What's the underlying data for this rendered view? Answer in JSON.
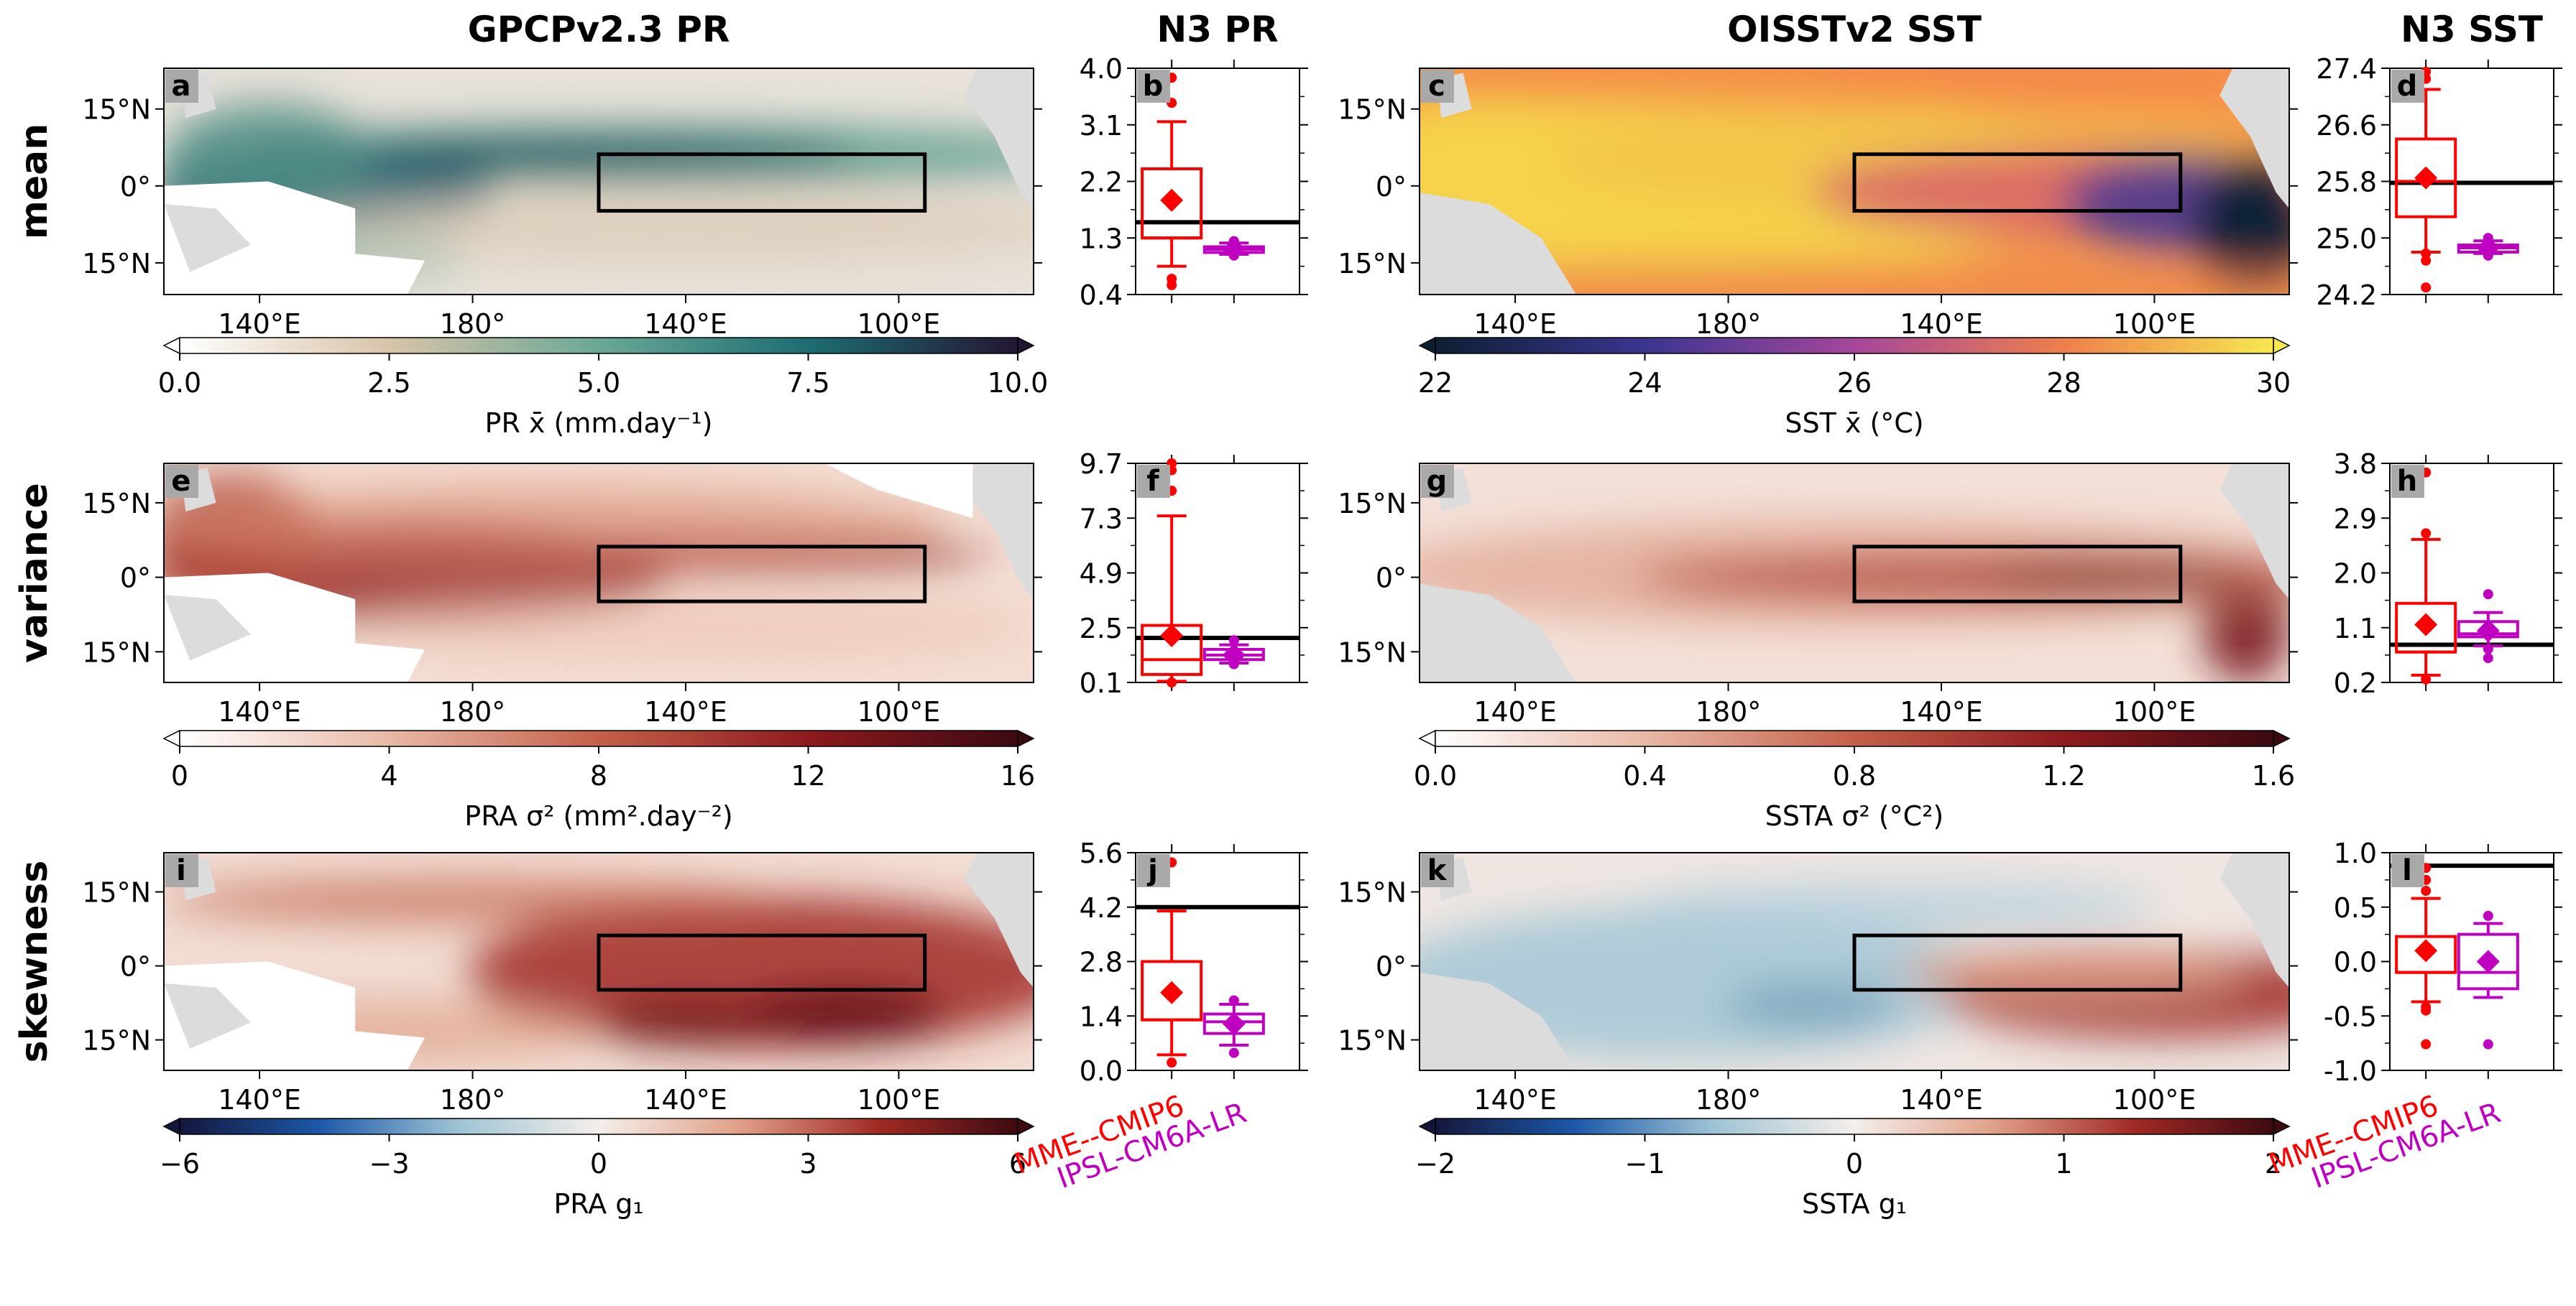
{
  "figure": {
    "column_titles": [
      "GPCPv2.3 PR",
      "N3 PR",
      "OISSTv2 SST",
      "N3 SST"
    ],
    "row_labels": [
      "mean",
      "variance",
      "skewness"
    ],
    "legend_models": [
      {
        "name": "MME--CMIP6",
        "color": "#ff0000"
      },
      {
        "name": "IPSL-CM6A-LR",
        "color": "#c000c0"
      }
    ],
    "map_panels": [
      {
        "letter": "a",
        "field": "pr_mean",
        "lon_ticks": [
          "140$E",
          "180$",
          "140$E",
          "100$E"
        ],
        "lat_ticks": [
          "15$N",
          "0$",
          "15$N"
        ]
      },
      {
        "letter": "c",
        "field": "sst_mean",
        "lon_ticks": [
          "140$E",
          "180$",
          "140$E",
          "100$E"
        ],
        "lat_ticks": [
          "15$N",
          "0$",
          "15$N"
        ]
      },
      {
        "letter": "e",
        "field": "pr_var",
        "lon_ticks": [
          "140$E",
          "180$",
          "140$E",
          "100$E"
        ],
        "lat_ticks": [
          "15$N",
          "0$",
          "15$N"
        ]
      },
      {
        "letter": "g",
        "field": "sst_var",
        "lon_ticks": [
          "140$E",
          "180$",
          "140$E",
          "100$E"
        ],
        "lat_ticks": [
          "15$N",
          "0$",
          "15$N"
        ]
      },
      {
        "letter": "i",
        "field": "pr_skew",
        "lon_ticks": [
          "140$E",
          "180$",
          "140$E",
          "100$E"
        ],
        "lat_ticks": [
          "15$N",
          "0$",
          "15$N"
        ]
      },
      {
        "letter": "k",
        "field": "sst_skew",
        "lon_ticks": [
          "140$E",
          "180$",
          "140$E",
          "100$E"
        ],
        "lat_ticks": [
          "15$N",
          "0$",
          "15$N"
        ]
      }
    ],
    "colorbars": [
      {
        "label": "PR x̄ (mm.day⁻¹)",
        "ticks": [
          "0.0",
          "2.5",
          "5.0",
          "7.5",
          "10.0"
        ],
        "colormap": [
          "#ffffff",
          "#d8c4a8",
          "#6aa896",
          "#1c6d73",
          "#231633"
        ],
        "extend": "both-arrows"
      },
      {
        "label": "SST x̄ (°C)",
        "ticks": [
          "22",
          "24",
          "26",
          "28",
          "30"
        ],
        "colormap": [
          "#0d1f33",
          "#3a3591",
          "#a5469b",
          "#ee7f4c",
          "#f7e84f"
        ],
        "extend": "both-arrows"
      },
      {
        "label": "PRA σ² (mm².day⁻²)",
        "ticks": [
          "0",
          "4",
          "8",
          "12",
          "16"
        ],
        "colormap": [
          "#ffffff",
          "#e8b9a6",
          "#c4604a",
          "#8e1a1e",
          "#3b0a10"
        ],
        "extend": "both-arrows"
      },
      {
        "label": "SSTA σ² (°C²)",
        "ticks": [
          "0.0",
          "0.4",
          "0.8",
          "1.2",
          "1.6"
        ],
        "colormap": [
          "#ffffff",
          "#e8b9a6",
          "#c4604a",
          "#8e1a1e",
          "#3b0a10"
        ],
        "extend": "both-arrows"
      },
      {
        "label": "PRA g₁",
        "ticks": [
          "−6",
          "−3",
          "0",
          "3",
          "6"
        ],
        "colormap": [
          "#14173c",
          "#1b58a8",
          "#9fc4d5",
          "#f4eeea",
          "#e0a088",
          "#a12a24",
          "#3d0a10"
        ],
        "extend": "both-arrows"
      },
      {
        "label": "SSTA g₁",
        "ticks": [
          "−2",
          "−1",
          "0",
          "1",
          "2"
        ],
        "colormap": [
          "#14173c",
          "#1b58a8",
          "#9fc4d5",
          "#f4eeea",
          "#e0a088",
          "#a12a24",
          "#3d0a10"
        ],
        "extend": "both-arrows"
      }
    ]
  },
  "chart_data": [
    {
      "panel": "b",
      "type": "box",
      "column": "N3 PR",
      "row": "mean",
      "ylim": [
        0.4,
        4.0
      ],
      "yticks": [
        "0.4",
        "1.3",
        "2.2",
        "3.1",
        "4.0"
      ],
      "reference_line": 1.55,
      "boxes": [
        {
          "model": "MME--CMIP6",
          "q1": 1.3,
          "median": 1.3,
          "q3": 2.4,
          "whisker_low": 0.85,
          "whisker_high": 3.15,
          "mean": 1.9,
          "outliers": [
            0.55,
            0.65,
            3.45,
            3.85
          ]
        },
        {
          "model": "IPSL-CM6A-LR",
          "q1": 1.07,
          "median": 1.12,
          "q3": 1.16,
          "whisker_low": 1.04,
          "whisker_high": 1.22,
          "mean": 1.12,
          "outliers": [
            1.02,
            1.25
          ]
        }
      ]
    },
    {
      "panel": "d",
      "type": "box",
      "column": "N3 SST",
      "row": "mean",
      "ylim": [
        24.2,
        27.4
      ],
      "yticks": [
        "24.2",
        "25.0",
        "25.8",
        "26.6",
        "27.4"
      ],
      "reference_line": 25.78,
      "boxes": [
        {
          "model": "MME--CMIP6",
          "q1": 25.3,
          "median": 25.8,
          "q3": 26.4,
          "whisker_low": 24.8,
          "whisker_high": 27.1,
          "mean": 25.85,
          "outliers": [
            24.3,
            24.68,
            24.78,
            27.25,
            27.35
          ]
        },
        {
          "model": "IPSL-CM6A-LR",
          "q1": 24.8,
          "median": 24.86,
          "q3": 24.9,
          "whisker_low": 24.78,
          "whisker_high": 24.96,
          "mean": 24.86,
          "outliers": [
            24.75,
            25.0
          ]
        }
      ]
    },
    {
      "panel": "f",
      "type": "box",
      "column": "N3 PR",
      "row": "variance",
      "ylim": [
        0.1,
        9.7
      ],
      "yticks": [
        "0.1",
        "2.5",
        "4.9",
        "7.3",
        "9.7"
      ],
      "reference_line": 2.05,
      "boxes": [
        {
          "model": "MME--CMIP6",
          "q1": 0.45,
          "median": 1.1,
          "q3": 2.6,
          "whisker_low": 0.15,
          "whisker_high": 7.4,
          "mean": 2.15,
          "outliers": [
            8.5,
            9.4,
            9.7,
            0.1
          ]
        },
        {
          "model": "IPSL-CM6A-LR",
          "q1": 1.1,
          "median": 1.3,
          "q3": 1.55,
          "whisker_low": 0.95,
          "whisker_high": 1.75,
          "mean": 1.3,
          "outliers": [
            0.9,
            1.95
          ]
        }
      ]
    },
    {
      "panel": "h",
      "type": "box",
      "column": "N3 SST",
      "row": "variance",
      "ylim": [
        0.2,
        3.8
      ],
      "yticks": [
        "0.2",
        "1.1",
        "2.0",
        "2.9",
        "3.8"
      ],
      "reference_line": 0.82,
      "boxes": [
        {
          "model": "MME--CMIP6",
          "q1": 0.7,
          "median": 0.7,
          "q3": 1.5,
          "whisker_low": 0.32,
          "whisker_high": 2.55,
          "mean": 1.15,
          "outliers": [
            0.25,
            2.65,
            3.65
          ]
        },
        {
          "model": "IPSL-CM6A-LR",
          "q1": 0.95,
          "median": 1.0,
          "q3": 1.2,
          "whisker_low": 0.8,
          "whisker_high": 1.35,
          "mean": 1.05,
          "outliers": [
            0.6,
            0.75,
            1.65
          ]
        }
      ]
    },
    {
      "panel": "j",
      "type": "box",
      "column": "N3 PR",
      "row": "skewness",
      "ylim": [
        0.0,
        5.6
      ],
      "yticks": [
        "0.0",
        "1.4",
        "2.8",
        "4.2",
        "5.6"
      ],
      "reference_line": 4.2,
      "boxes": [
        {
          "model": "MME--CMIP6",
          "q1": 1.3,
          "median": 1.3,
          "q3": 2.8,
          "whisker_low": 0.4,
          "whisker_high": 4.1,
          "mean": 2.0,
          "outliers": [
            0.2,
            5.35
          ]
        },
        {
          "model": "IPSL-CM6A-LR",
          "q1": 0.95,
          "median": 1.25,
          "q3": 1.45,
          "whisker_low": 0.65,
          "whisker_high": 1.7,
          "mean": 1.2,
          "outliers": [
            0.45,
            1.8
          ]
        }
      ]
    },
    {
      "panel": "l",
      "type": "box",
      "column": "N3 SST",
      "row": "skewness",
      "ylim": [
        -1.0,
        1.0
      ],
      "yticks": [
        "-1.0",
        "-0.5",
        "0.0",
        "0.5",
        "1.0"
      ],
      "reference_line": 0.88,
      "boxes": [
        {
          "model": "MME--CMIP6",
          "q1": -0.1,
          "median": -0.1,
          "q3": 0.23,
          "whisker_low": -0.37,
          "whisker_high": 0.58,
          "mean": 0.1,
          "outliers": [
            -0.76,
            -0.45,
            -0.42,
            0.65,
            0.75,
            0.86
          ]
        },
        {
          "model": "IPSL-CM6A-LR",
          "q1": -0.25,
          "median": -0.1,
          "q3": 0.25,
          "whisker_low": -0.33,
          "whisker_high": 0.35,
          "mean": 0.0,
          "outliers": [
            -0.76,
            0.42
          ]
        }
      ]
    }
  ]
}
